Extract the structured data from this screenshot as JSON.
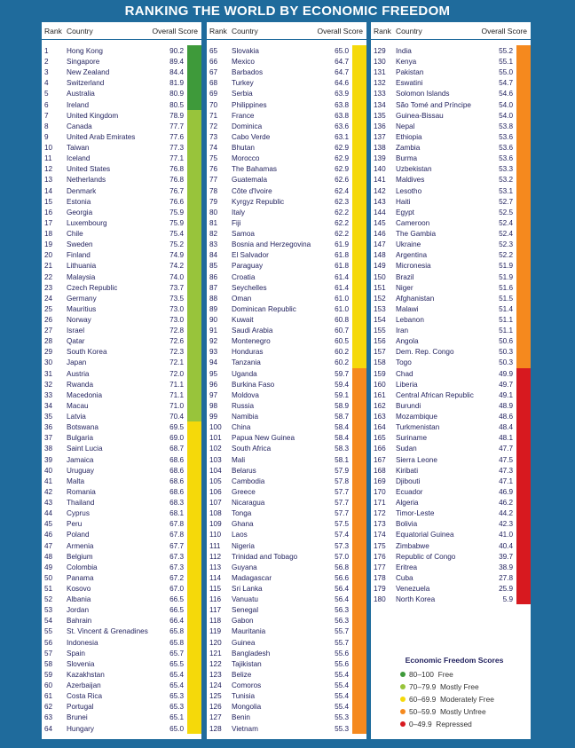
{
  "title": "RANKING THE WORLD BY ECONOMIC FREEDOM",
  "headers": {
    "rank": "Rank",
    "country": "Country",
    "score": "Overall Score"
  },
  "category_colors": [
    "#3e9a3a",
    "#98c43b",
    "#f5d90a",
    "#f5891e",
    "#d7191f"
  ],
  "legend": {
    "title": "Economic Freedom Scores",
    "items": [
      {
        "range": "80–100",
        "label": "Free",
        "color": "#3e9a3a"
      },
      {
        "range": "70–79.9",
        "label": "Mostly Free",
        "color": "#98c43b"
      },
      {
        "range": "60–69.9",
        "label": "Moderately Free",
        "color": "#f5d90a"
      },
      {
        "range": "50–59.9",
        "label": "Mostly Unfree",
        "color": "#f5891e"
      },
      {
        "range": "0–49.9",
        "label": "Repressed",
        "color": "#d7191f"
      }
    ]
  },
  "columns": [
    {
      "rows": [
        [
          "1",
          "Hong Kong",
          "90.2"
        ],
        [
          "2",
          "Singapore",
          "89.4"
        ],
        [
          "3",
          "New Zealand",
          "84.4"
        ],
        [
          "4",
          "Switzerland",
          "81.9"
        ],
        [
          "5",
          "Australia",
          "80.9"
        ],
        [
          "6",
          "Ireland",
          "80.5"
        ],
        [
          "7",
          "United Kingdom",
          "78.9"
        ],
        [
          "8",
          "Canada",
          "77.7"
        ],
        [
          "9",
          "United Arab Emirates",
          "77.6"
        ],
        [
          "10",
          "Taiwan",
          "77.3"
        ],
        [
          "11",
          "Iceland",
          "77.1"
        ],
        [
          "12",
          "United States",
          "76.8"
        ],
        [
          "13",
          "Netherlands",
          "76.8"
        ],
        [
          "14",
          "Denmark",
          "76.7"
        ],
        [
          "15",
          "Estonia",
          "76.6"
        ],
        [
          "16",
          "Georgia",
          "75.9"
        ],
        [
          "17",
          "Luxembourg",
          "75.9"
        ],
        [
          "18",
          "Chile",
          "75.4"
        ],
        [
          "19",
          "Sweden",
          "75.2"
        ],
        [
          "20",
          "Finland",
          "74.9"
        ],
        [
          "21",
          "Lithuania",
          "74.2"
        ],
        [
          "22",
          "Malaysia",
          "74.0"
        ],
        [
          "23",
          "Czech Republic",
          "73.7"
        ],
        [
          "24",
          "Germany",
          "73.5"
        ],
        [
          "25",
          "Mauritius",
          "73.0"
        ],
        [
          "26",
          "Norway",
          "73.0"
        ],
        [
          "27",
          "Israel",
          "72.8"
        ],
        [
          "28",
          "Qatar",
          "72.6"
        ],
        [
          "29",
          "South Korea",
          "72.3"
        ],
        [
          "30",
          "Japan",
          "72.1"
        ],
        [
          "31",
          "Austria",
          "72.0"
        ],
        [
          "32",
          "Rwanda",
          "71.1"
        ],
        [
          "33",
          "Macedonia",
          "71.1"
        ],
        [
          "34",
          "Macau",
          "71.0"
        ],
        [
          "35",
          "Latvia",
          "70.4"
        ],
        [
          "36",
          "Botswana",
          "69.5"
        ],
        [
          "37",
          "Bulgaria",
          "69.0"
        ],
        [
          "38",
          "Saint Lucia",
          "68.7"
        ],
        [
          "39",
          "Jamaica",
          "68.6"
        ],
        [
          "40",
          "Uruguay",
          "68.6"
        ],
        [
          "41",
          "Malta",
          "68.6"
        ],
        [
          "42",
          "Romania",
          "68.6"
        ],
        [
          "43",
          "Thailand",
          "68.3"
        ],
        [
          "44",
          "Cyprus",
          "68.1"
        ],
        [
          "45",
          "Peru",
          "67.8"
        ],
        [
          "46",
          "Poland",
          "67.8"
        ],
        [
          "47",
          "Armenia",
          "67.7"
        ],
        [
          "48",
          "Belgium",
          "67.3"
        ],
        [
          "49",
          "Colombia",
          "67.3"
        ],
        [
          "50",
          "Panama",
          "67.2"
        ],
        [
          "51",
          "Kosovo",
          "67.0"
        ],
        [
          "52",
          "Albania",
          "66.5"
        ],
        [
          "53",
          "Jordan",
          "66.5"
        ],
        [
          "54",
          "Bahrain",
          "66.4"
        ],
        [
          "55",
          "St. Vincent & Grenadines",
          "65.8"
        ],
        [
          "56",
          "Indonesia",
          "65.8"
        ],
        [
          "57",
          "Spain",
          "65.7"
        ],
        [
          "58",
          "Slovenia",
          "65.5"
        ],
        [
          "59",
          "Kazakhstan",
          "65.4"
        ],
        [
          "60",
          "Azerbaijan",
          "65.4"
        ],
        [
          "61",
          "Costa Rica",
          "65.3"
        ],
        [
          "62",
          "Portugal",
          "65.3"
        ],
        [
          "63",
          "Brunei",
          "65.1"
        ],
        [
          "64",
          "Hungary",
          "65.0"
        ]
      ]
    },
    {
      "rows": [
        [
          "65",
          "Slovakia",
          "65.0"
        ],
        [
          "66",
          "Mexico",
          "64.7"
        ],
        [
          "67",
          "Barbados",
          "64.7"
        ],
        [
          "68",
          "Turkey",
          "64.6"
        ],
        [
          "69",
          "Serbia",
          "63.9"
        ],
        [
          "70",
          "Philippines",
          "63.8"
        ],
        [
          "71",
          "France",
          "63.8"
        ],
        [
          "72",
          "Dominica",
          "63.6"
        ],
        [
          "73",
          "Cabo Verde",
          "63.1"
        ],
        [
          "74",
          "Bhutan",
          "62.9"
        ],
        [
          "75",
          "Morocco",
          "62.9"
        ],
        [
          "76",
          "The Bahamas",
          "62.9"
        ],
        [
          "77",
          "Guatemala",
          "62.6"
        ],
        [
          "78",
          "Côte d'Ivoire",
          "62.4"
        ],
        [
          "79",
          "Kyrgyz Republic",
          "62.3"
        ],
        [
          "80",
          "Italy",
          "62.2"
        ],
        [
          "81",
          "Fiji",
          "62.2"
        ],
        [
          "82",
          "Samoa",
          "62.2"
        ],
        [
          "83",
          "Bosnia and Herzegovina",
          "61.9"
        ],
        [
          "84",
          "El Salvador",
          "61.8"
        ],
        [
          "85",
          "Paraguay",
          "61.8"
        ],
        [
          "86",
          "Croatia",
          "61.4"
        ],
        [
          "87",
          "Seychelles",
          "61.4"
        ],
        [
          "88",
          "Oman",
          "61.0"
        ],
        [
          "89",
          "Dominican Republic",
          "61.0"
        ],
        [
          "90",
          "Kuwait",
          "60.8"
        ],
        [
          "91",
          "Saudi Arabia",
          "60.7"
        ],
        [
          "92",
          "Montenegro",
          "60.5"
        ],
        [
          "93",
          "Honduras",
          "60.2"
        ],
        [
          "94",
          "Tanzania",
          "60.2"
        ],
        [
          "95",
          "Uganda",
          "59.7"
        ],
        [
          "96",
          "Burkina Faso",
          "59.4"
        ],
        [
          "97",
          "Moldova",
          "59.1"
        ],
        [
          "98",
          "Russia",
          "58.9"
        ],
        [
          "99",
          "Namibia",
          "58.7"
        ],
        [
          "100",
          "China",
          "58.4"
        ],
        [
          "101",
          "Papua New Guinea",
          "58.4"
        ],
        [
          "102",
          "South Africa",
          "58.3"
        ],
        [
          "103",
          "Mali",
          "58.1"
        ],
        [
          "104",
          "Belarus",
          "57.9"
        ],
        [
          "105",
          "Cambodia",
          "57.8"
        ],
        [
          "106",
          "Greece",
          "57.7"
        ],
        [
          "107",
          "Nicaragua",
          "57.7"
        ],
        [
          "108",
          "Tonga",
          "57.7"
        ],
        [
          "109",
          "Ghana",
          "57.5"
        ],
        [
          "110",
          "Laos",
          "57.4"
        ],
        [
          "111",
          "Nigeria",
          "57.3"
        ],
        [
          "112",
          "Trinidad and Tobago",
          "57.0"
        ],
        [
          "113",
          "Guyana",
          "56.8"
        ],
        [
          "114",
          "Madagascar",
          "56.6"
        ],
        [
          "115",
          "Sri Lanka",
          "56.4"
        ],
        [
          "116",
          "Vanuatu",
          "56.4"
        ],
        [
          "117",
          "Senegal",
          "56.3"
        ],
        [
          "118",
          "Gabon",
          "56.3"
        ],
        [
          "119",
          "Mauritania",
          "55.7"
        ],
        [
          "120",
          "Guinea",
          "55.7"
        ],
        [
          "121",
          "Bangladesh",
          "55.6"
        ],
        [
          "122",
          "Tajikistan",
          "55.6"
        ],
        [
          "123",
          "Belize",
          "55.4"
        ],
        [
          "124",
          "Comoros",
          "55.4"
        ],
        [
          "125",
          "Tunisia",
          "55.4"
        ],
        [
          "126",
          "Mongolia",
          "55.4"
        ],
        [
          "127",
          "Benin",
          "55.3"
        ],
        [
          "128",
          "Vietnam",
          "55.3"
        ]
      ]
    },
    {
      "rows": [
        [
          "129",
          "India",
          "55.2"
        ],
        [
          "130",
          "Kenya",
          "55.1"
        ],
        [
          "131",
          "Pakistan",
          "55.0"
        ],
        [
          "132",
          "Eswatini",
          "54.7"
        ],
        [
          "133",
          "Solomon Islands",
          "54.6"
        ],
        [
          "134",
          "São Tomé and Príncipe",
          "54.0"
        ],
        [
          "135",
          "Guinea-Bissau",
          "54.0"
        ],
        [
          "136",
          "Nepal",
          "53.8"
        ],
        [
          "137",
          "Ethiopia",
          "53.6"
        ],
        [
          "138",
          "Zambia",
          "53.6"
        ],
        [
          "139",
          "Burma",
          "53.6"
        ],
        [
          "140",
          "Uzbekistan",
          "53.3"
        ],
        [
          "141",
          "Maldives",
          "53.2"
        ],
        [
          "142",
          "Lesotho",
          "53.1"
        ],
        [
          "143",
          "Haiti",
          "52.7"
        ],
        [
          "144",
          "Egypt",
          "52.5"
        ],
        [
          "145",
          "Cameroon",
          "52.4"
        ],
        [
          "146",
          "The Gambia",
          "52.4"
        ],
        [
          "147",
          "Ukraine",
          "52.3"
        ],
        [
          "148",
          "Argentina",
          "52.2"
        ],
        [
          "149",
          "Micronesia",
          "51.9"
        ],
        [
          "150",
          "Brazil",
          "51.9"
        ],
        [
          "151",
          "Niger",
          "51.6"
        ],
        [
          "152",
          "Afghanistan",
          "51.5"
        ],
        [
          "153",
          "Malawi",
          "51.4"
        ],
        [
          "154",
          "Lebanon",
          "51.1"
        ],
        [
          "155",
          "Iran",
          "51.1"
        ],
        [
          "156",
          "Angola",
          "50.6"
        ],
        [
          "157",
          "Dem. Rep. Congo",
          "50.3"
        ],
        [
          "158",
          "Togo",
          "50.3"
        ],
        [
          "159",
          "Chad",
          "49.9"
        ],
        [
          "160",
          "Liberia",
          "49.7"
        ],
        [
          "161",
          "Central African Republic",
          "49.1"
        ],
        [
          "162",
          "Burundi",
          "48.9"
        ],
        [
          "163",
          "Mozambique",
          "48.6"
        ],
        [
          "164",
          "Turkmenistan",
          "48.4"
        ],
        [
          "165",
          "Suriname",
          "48.1"
        ],
        [
          "166",
          "Sudan",
          "47.7"
        ],
        [
          "167",
          "Sierra Leone",
          "47.5"
        ],
        [
          "168",
          "Kiribati",
          "47.3"
        ],
        [
          "169",
          "Djibouti",
          "47.1"
        ],
        [
          "170",
          "Ecuador",
          "46.9"
        ],
        [
          "171",
          "Algeria",
          "46.2"
        ],
        [
          "172",
          "Timor-Leste",
          "44.2"
        ],
        [
          "173",
          "Bolivia",
          "42.3"
        ],
        [
          "174",
          "Equatorial Guinea",
          "41.0"
        ],
        [
          "175",
          "Zimbabwe",
          "40.4"
        ],
        [
          "176",
          "Republic of Congo",
          "39.7"
        ],
        [
          "177",
          "Eritrea",
          "38.9"
        ],
        [
          "178",
          "Cuba",
          "27.8"
        ],
        [
          "179",
          "Venezuela",
          "25.9"
        ],
        [
          "180",
          "North Korea",
          "5.9"
        ]
      ]
    }
  ]
}
